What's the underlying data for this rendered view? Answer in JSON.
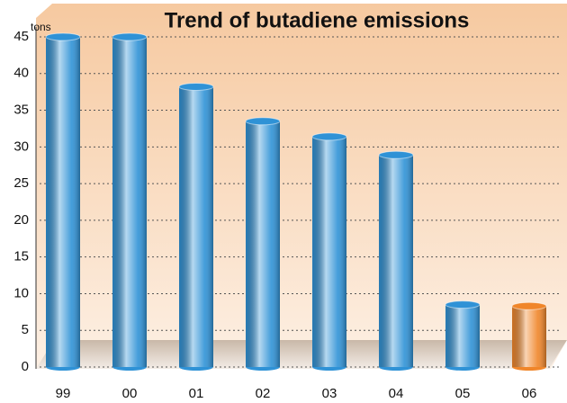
{
  "chart_data": {
    "type": "bar",
    "title": "Trend of butadiene emissions",
    "y_label": "tons",
    "categories": [
      "99",
      "00",
      "01",
      "02",
      "03",
      "04",
      "05",
      "06"
    ],
    "values": [
      45,
      45,
      38.2,
      33.5,
      31.4,
      28.9,
      8.5,
      8.3
    ],
    "colors": [
      "#2f92d6",
      "#2f92d6",
      "#2f92d6",
      "#2f92d6",
      "#2f92d6",
      "#2f92d6",
      "#2f92d6",
      "#f0862a"
    ],
    "ylim": [
      0,
      45
    ],
    "yticks": [
      0,
      5,
      10,
      15,
      20,
      25,
      30,
      35,
      40,
      45
    ],
    "grid": true
  }
}
